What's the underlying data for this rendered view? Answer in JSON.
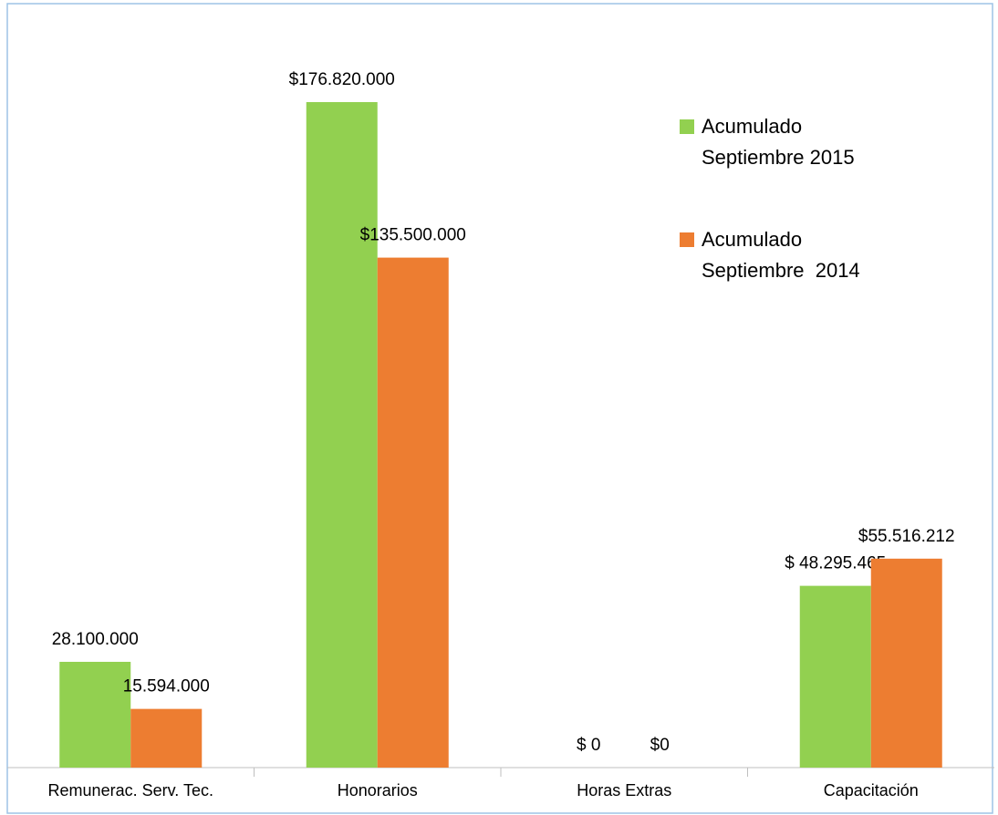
{
  "chart_data": {
    "type": "bar",
    "categories": [
      "Remunerac. Serv. Tec.",
      "Honorarios",
      "Horas Extras",
      "Capacitación"
    ],
    "series": [
      {
        "name": "Acumulado\nSeptiembre 2015",
        "color": "#92d050",
        "values": [
          28100000,
          176820000,
          0,
          48295465
        ],
        "value_labels": [
          "28.100.000",
          "$176.820.000",
          "$ 0",
          "$ 48.295.465"
        ]
      },
      {
        "name": "Acumulado\nSeptiembre  2014",
        "color": "#ed7d31",
        "values": [
          15594000,
          135500000,
          0,
          55516212
        ],
        "value_labels": [
          "15.594.000",
          "$135.500.000",
          "$0",
          "$55.516.212"
        ]
      }
    ]
  }
}
